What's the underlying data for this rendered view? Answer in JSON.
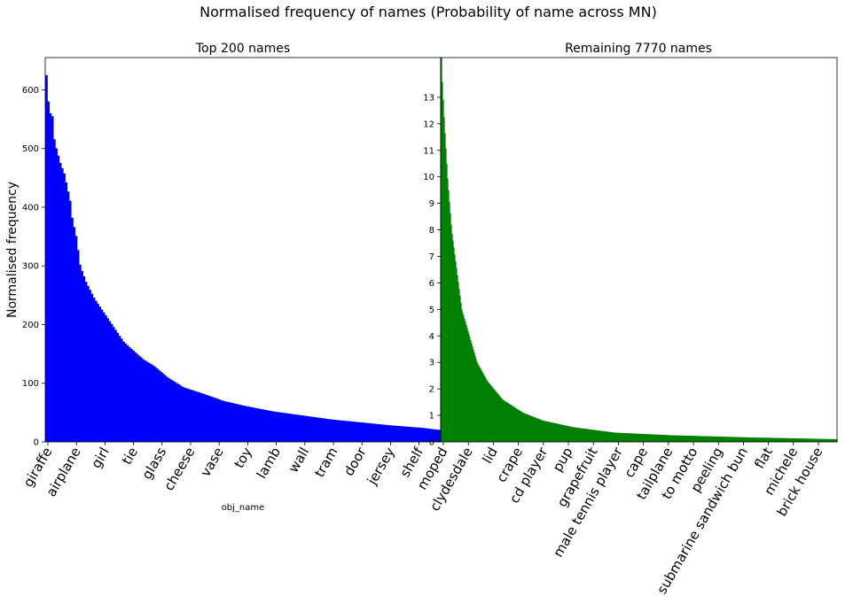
{
  "figure": {
    "title": "Normalised frequency of names (Probability of name across MN)"
  },
  "chart_data": [
    {
      "type": "bar",
      "title": "Top 200 names",
      "ylabel": "Normalised frequency",
      "xlabel": "obj_name",
      "color": "#0000ff",
      "ylim": [
        0,
        655
      ],
      "yticks": [
        0,
        100,
        200,
        300,
        400,
        500,
        600
      ],
      "n_bars": 200,
      "tick_labels": [
        "giraffe",
        "airplane",
        "girl",
        "tie",
        "glass",
        "cheese",
        "vase",
        "toy",
        "lamb",
        "wall",
        "tram",
        "door",
        "jersey",
        "shelf"
      ],
      "values_profile": [
        {
          "rank": 1,
          "value": 625
        },
        {
          "rank": 2,
          "value": 580
        },
        {
          "rank": 3,
          "value": 560
        },
        {
          "rank": 4,
          "value": 555
        },
        {
          "rank": 5,
          "value": 515
        },
        {
          "rank": 6,
          "value": 500
        },
        {
          "rank": 8,
          "value": 475
        },
        {
          "rank": 10,
          "value": 457
        },
        {
          "rank": 13,
          "value": 410
        },
        {
          "rank": 14,
          "value": 380
        },
        {
          "rank": 16,
          "value": 350
        },
        {
          "rank": 18,
          "value": 300
        },
        {
          "rank": 21,
          "value": 272
        },
        {
          "rank": 25,
          "value": 245
        },
        {
          "rank": 30,
          "value": 220
        },
        {
          "rank": 35,
          "value": 195
        },
        {
          "rank": 40,
          "value": 170
        },
        {
          "rank": 45,
          "value": 155
        },
        {
          "rank": 50,
          "value": 140
        },
        {
          "rank": 55,
          "value": 130
        },
        {
          "rank": 62,
          "value": 110
        },
        {
          "rank": 70,
          "value": 93
        },
        {
          "rank": 80,
          "value": 82
        },
        {
          "rank": 90,
          "value": 70
        },
        {
          "rank": 100,
          "value": 62
        },
        {
          "rank": 115,
          "value": 52
        },
        {
          "rank": 130,
          "value": 45
        },
        {
          "rank": 145,
          "value": 38
        },
        {
          "rank": 160,
          "value": 33
        },
        {
          "rank": 175,
          "value": 28
        },
        {
          "rank": 190,
          "value": 24
        },
        {
          "rank": 200,
          "value": 20
        }
      ]
    },
    {
      "type": "bar",
      "title": "Remaining 7770 names",
      "color": "#008000",
      "ylim": [
        0,
        14.5
      ],
      "yticks": [
        0,
        1,
        2,
        3,
        4,
        5,
        6,
        7,
        8,
        9,
        10,
        11,
        12,
        13
      ],
      "n_bars": 7770,
      "tick_labels": [
        "moped",
        "clydesdale",
        "lid",
        "crape",
        "cd player",
        "pup",
        "grapefruit",
        "male tennis player",
        "cape",
        "tailplane",
        "to motto",
        "peeling",
        "submarine sandwich bun",
        "flat",
        "michele",
        "brick house"
      ],
      "values_profile": [
        {
          "rank": 1,
          "value": 14.5
        },
        {
          "rank": 20,
          "value": 13.5
        },
        {
          "rank": 60,
          "value": 12
        },
        {
          "rank": 120,
          "value": 10
        },
        {
          "rank": 200,
          "value": 8
        },
        {
          "rank": 300,
          "value": 6.5
        },
        {
          "rank": 400,
          "value": 5
        },
        {
          "rank": 550,
          "value": 4
        },
        {
          "rank": 700,
          "value": 3
        },
        {
          "rank": 900,
          "value": 2.3
        },
        {
          "rank": 1200,
          "value": 1.6
        },
        {
          "rank": 1600,
          "value": 1.1
        },
        {
          "rank": 2000,
          "value": 0.8
        },
        {
          "rank": 2600,
          "value": 0.55
        },
        {
          "rank": 3400,
          "value": 0.35
        },
        {
          "rank": 4500,
          "value": 0.25
        },
        {
          "rank": 6000,
          "value": 0.17
        },
        {
          "rank": 7770,
          "value": 0.1
        }
      ]
    }
  ]
}
